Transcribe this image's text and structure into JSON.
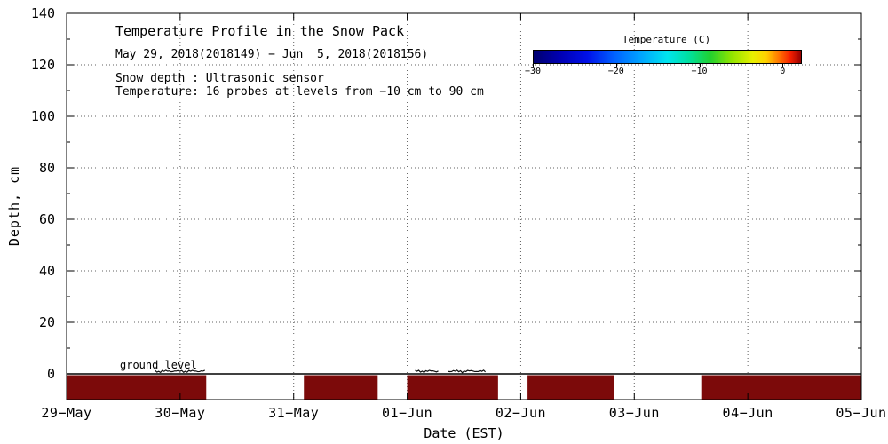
{
  "chart_data": {
    "type": "heatmap",
    "title": "Temperature Profile in the Snow Pack",
    "subtitle": "May 29, 2018(2018149) − Jun  5, 2018(2018156)",
    "notes": [
      "Snow depth : Ultrasonic sensor",
      "Temperature: 16 probes at levels from −10 cm to 90 cm"
    ],
    "xlabel": "Date (EST)",
    "ylabel": "Depth, cm",
    "x_tick_labels": [
      "29−May",
      "30−May",
      "31−May",
      "01−Jun",
      "02−Jun",
      "03−Jun",
      "04−Jun",
      "05−Jun"
    ],
    "x_range_days": [
      0,
      7
    ],
    "y_ticks": [
      0,
      20,
      40,
      60,
      80,
      100,
      120,
      140
    ],
    "y_minor_step": 10,
    "ylim": [
      -10,
      140
    ],
    "grid": "dotted",
    "ground_level": {
      "label": "ground level",
      "depth_cm": 0
    },
    "colorbar": {
      "title": "Temperature (C)",
      "range_c": [
        -30,
        2
      ],
      "tick_values_c": [
        -30,
        -20,
        -10,
        0
      ],
      "tick_labels": [
        "−30",
        "−20",
        "−10",
        "0"
      ],
      "gradient_stops": [
        {
          "pos": 0.0,
          "color": "#00006e"
        },
        {
          "pos": 0.1,
          "color": "#0000b4"
        },
        {
          "pos": 0.2,
          "color": "#0010e8"
        },
        {
          "pos": 0.3,
          "color": "#0060ff"
        },
        {
          "pos": 0.4,
          "color": "#00a4ff"
        },
        {
          "pos": 0.5,
          "color": "#00e4ee"
        },
        {
          "pos": 0.58,
          "color": "#00e0a0"
        },
        {
          "pos": 0.66,
          "color": "#20d030"
        },
        {
          "pos": 0.74,
          "color": "#90e400"
        },
        {
          "pos": 0.82,
          "color": "#e8f000"
        },
        {
          "pos": 0.87,
          "color": "#ffd000"
        },
        {
          "pos": 0.92,
          "color": "#ff7000"
        },
        {
          "pos": 0.96,
          "color": "#f52000"
        },
        {
          "pos": 1.0,
          "color": "#960000"
        }
      ]
    },
    "subsurface_temperature": {
      "fill_color": "#7c0a0a",
      "depth_range_cm": [
        -10,
        0
      ],
      "segments_days": [
        [
          0.0,
          1.23
        ],
        [
          2.09,
          2.74
        ],
        [
          3.0,
          3.8
        ],
        [
          4.06,
          4.82
        ],
        [
          5.59,
          7.0
        ]
      ]
    },
    "snow_depth_trace": {
      "color": "#111111",
      "max_height_cm": 1.5,
      "segments_days": [
        [
          0.78,
          1.22
        ],
        [
          3.07,
          3.28
        ],
        [
          3.36,
          3.7
        ]
      ]
    }
  }
}
